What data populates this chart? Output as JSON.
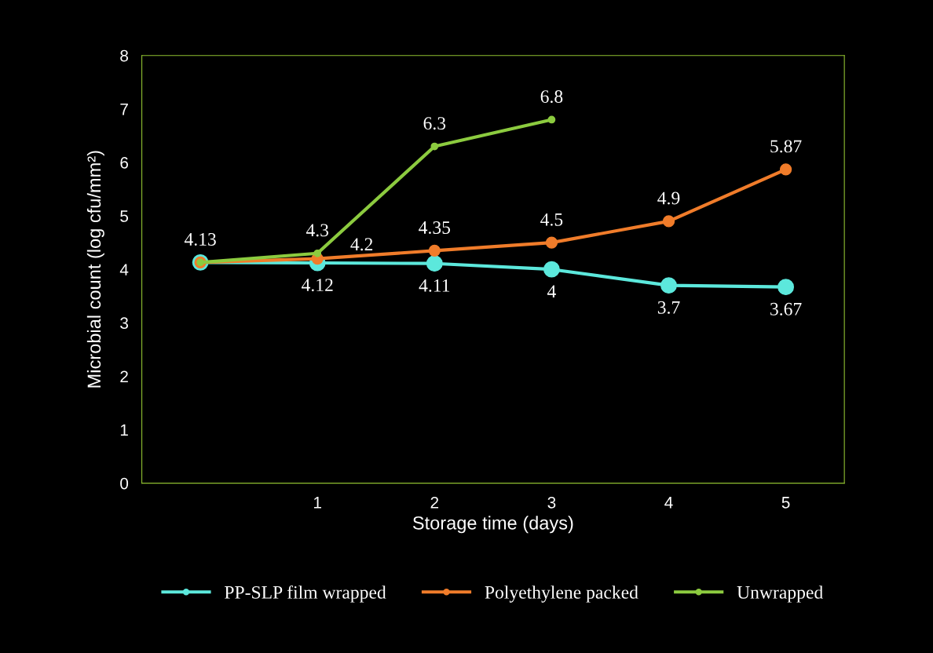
{
  "chart_data": {
    "type": "line",
    "xlabel": "Storage time (days)",
    "ylabel": "Microbial count (log cfu/mm²)",
    "categories": [
      null,
      "1",
      "2",
      "3",
      "4",
      "5"
    ],
    "ylim": [
      0,
      8
    ],
    "yticks": [
      0,
      1,
      2,
      3,
      4,
      5,
      6,
      7,
      8
    ],
    "grid": false,
    "legend": "bottom",
    "marker": "circle",
    "line_style": "solid",
    "series": [
      {
        "name": "PP-SLP film wrapped",
        "color": "#5ce8dc",
        "values": [
          4.13,
          4.12,
          4.11,
          4,
          3.7,
          3.67
        ],
        "value_labels": [
          null,
          "4.12",
          "4.11",
          "4",
          "3.7",
          "3.67"
        ]
      },
      {
        "name": "Polyethylene packed",
        "color": "#f07c2a",
        "values": [
          4.13,
          4.2,
          4.35,
          4.5,
          4.9,
          5.87
        ],
        "value_labels": [
          null,
          "4.2",
          "4.35",
          "4.5",
          "4.9",
          "5.87"
        ]
      },
      {
        "name": "Unwrapped",
        "color": "#8ccb3f",
        "values": [
          4.13,
          4.3,
          6.3,
          6.8,
          null,
          null
        ],
        "value_labels": [
          "4.13",
          "4.3",
          "6.3",
          "6.8",
          null,
          null
        ]
      }
    ]
  }
}
